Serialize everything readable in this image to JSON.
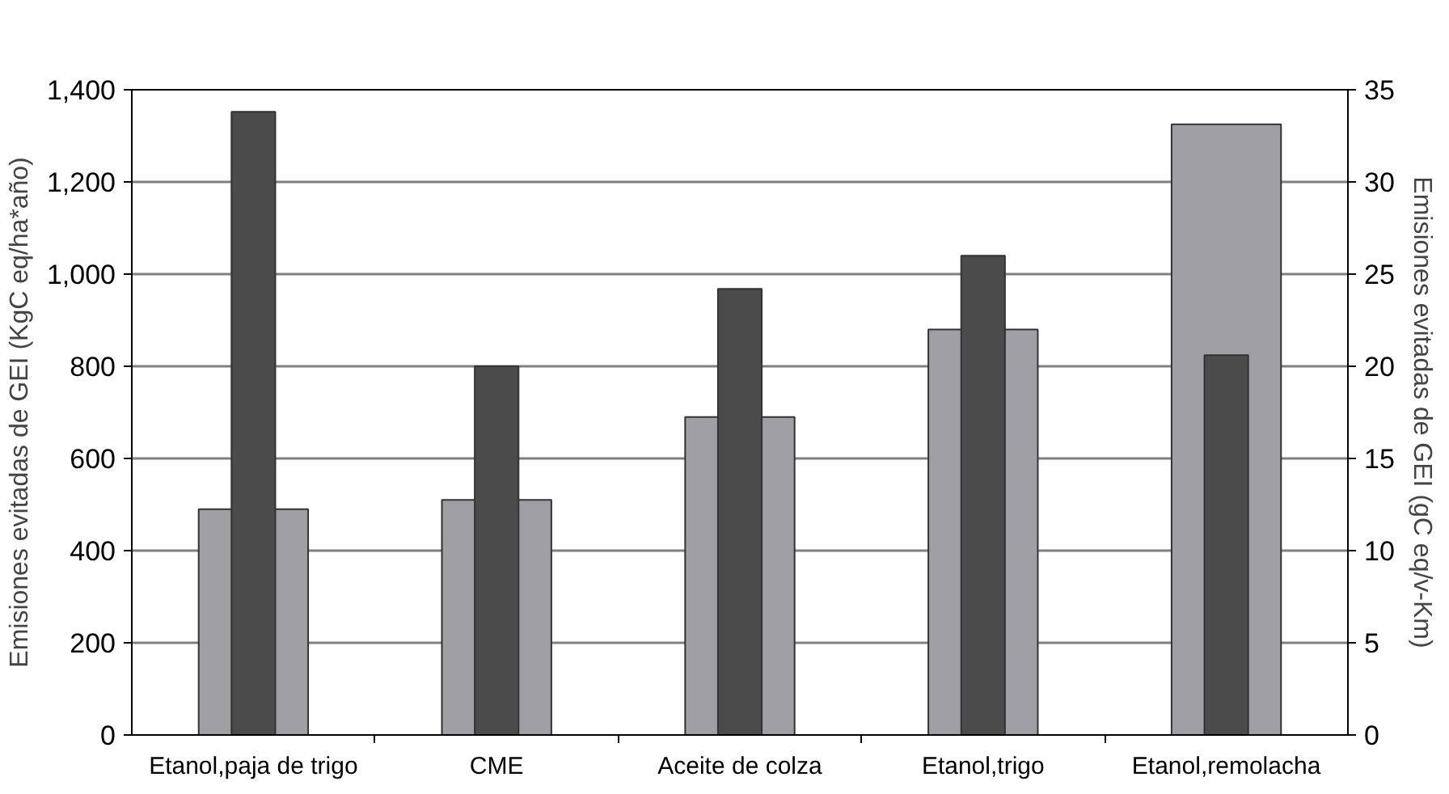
{
  "chart_data": {
    "type": "bar",
    "ylabel": "Emisiones evitadas de GEI (KgC eq/ha*año)",
    "y2label": "Emisiones evitadas de GEI (gC eq/v-Km)",
    "categories": [
      "Etanol,paja de trigo",
      "CME",
      "Aceite de colza",
      "Etanol,trigo",
      "Etanol,remolacha"
    ],
    "series": [
      {
        "color": "#a0a0a4",
        "values": [
          490,
          510,
          690,
          880,
          1325
        ]
      },
      {
        "color": "#4b4b4b",
        "axis": "y2",
        "values": [
          33.8,
          20,
          24.2,
          26,
          20.6
        ]
      }
    ],
    "ylim": [
      0,
      1400
    ],
    "yticks": [
      0,
      {
        "value": 200,
        "label": "200"
      },
      {
        "value": 400,
        "label": "400"
      },
      {
        "value": 600,
        "label": "600"
      },
      {
        "value": 800,
        "label": "800"
      },
      {
        "value": 1000,
        "label": "1,000"
      },
      {
        "value": 1200,
        "label": "1,200"
      },
      {
        "value": 1400,
        "label": "1,400"
      }
    ],
    "y2lim": [
      0,
      35
    ],
    "y2ticks": [
      0,
      5,
      10,
      15,
      20,
      25,
      30,
      35
    ],
    "grid": "y"
  }
}
